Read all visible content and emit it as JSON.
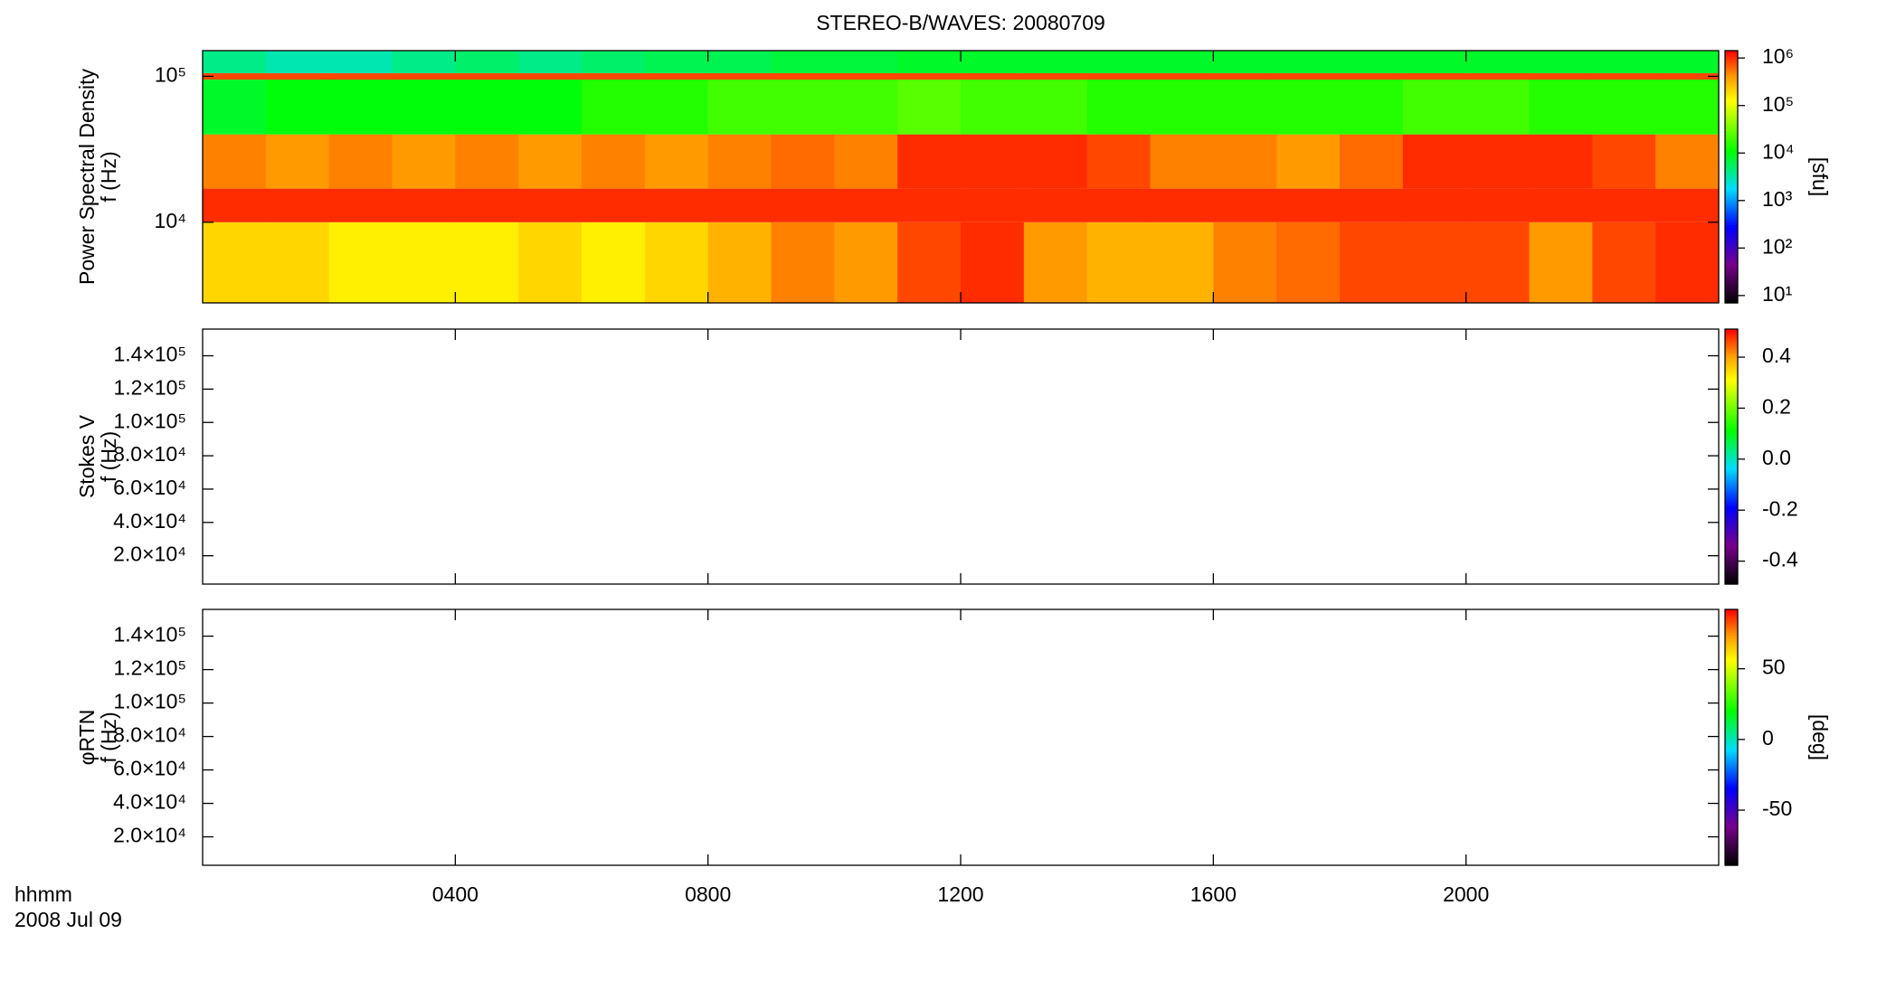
{
  "chart_data": [
    {
      "type": "heatmap",
      "title": "STEREO-B/WAVES: 20080709",
      "ylabel": [
        "Power Spectral Density",
        "f (Hz)"
      ],
      "xlim": [
        0,
        24
      ],
      "x_edges": [
        0,
        1,
        2,
        3,
        4,
        5,
        6,
        7,
        8,
        9,
        10,
        11,
        12,
        13,
        14,
        15,
        16,
        17,
        18,
        19,
        20,
        21,
        22,
        23,
        24
      ],
      "y_edges": [
        2800,
        10000,
        17000,
        40000,
        95000,
        105000,
        150000
      ],
      "z": [
        [
          200000,
          200000,
          150000,
          150000,
          150000,
          200000,
          150000,
          200000,
          300000,
          500000,
          400000,
          800000,
          1000000,
          400000,
          300000,
          300000,
          500000,
          600000,
          800000,
          800000,
          800000,
          400000,
          800000,
          1000000
        ],
        [
          1000000,
          1000000,
          1000000,
          1000000,
          1000000,
          1000000,
          1000000,
          1000000,
          1000000,
          1000000,
          1000000,
          1000000,
          1000000,
          1000000,
          1000000,
          1000000,
          1000000,
          1000000,
          1000000,
          1000000,
          1000000,
          1000000,
          1000000,
          1000000
        ],
        [
          500000,
          400000,
          500000,
          400000,
          500000,
          400000,
          500000,
          400000,
          500000,
          600000,
          500000,
          1000000,
          1000000,
          1000000,
          800000,
          500000,
          500000,
          400000,
          600000,
          1000000,
          1000000,
          1000000,
          800000,
          500000
        ],
        [
          8000,
          10000,
          10000,
          10000,
          10000,
          10000,
          15000,
          15000,
          20000,
          20000,
          20000,
          25000,
          20000,
          20000,
          15000,
          15000,
          15000,
          15000,
          15000,
          20000,
          20000,
          15000,
          15000,
          15000
        ],
        [
          800000,
          800000,
          800000,
          800000,
          800000,
          800000,
          800000,
          800000,
          800000,
          800000,
          800000,
          800000,
          800000,
          800000,
          800000,
          800000,
          800000,
          800000,
          800000,
          800000,
          800000,
          800000,
          800000,
          800000
        ],
        [
          4000,
          3000,
          3000,
          4000,
          5000,
          4000,
          5000,
          6000,
          6000,
          7000,
          7000,
          8000,
          8000,
          8000,
          8000,
          8000,
          8000,
          8000,
          8000,
          8000,
          8000,
          8000,
          8000,
          8000
        ]
      ],
      "ylim": [
        2800,
        150000
      ],
      "yscale": "log",
      "yticks": [
        {
          "value": 10000,
          "label": "10⁴"
        },
        {
          "value": 100000,
          "label": "10⁵"
        }
      ],
      "zlim": [
        7,
        1430000
      ],
      "zscale": "log",
      "zticks": [
        {
          "value": 10,
          "label": "10¹"
        },
        {
          "value": 100,
          "label": "10²"
        },
        {
          "value": 1000,
          "label": "10³"
        },
        {
          "value": 10000,
          "label": "10⁴"
        },
        {
          "value": 100000,
          "label": "10⁵"
        },
        {
          "value": 1000000,
          "label": "10⁶"
        }
      ],
      "zlabel": "[sfu]"
    },
    {
      "type": "heatmap",
      "ylabel": [
        "Stokes V",
        "f (Hz)"
      ],
      "xlim": [
        0,
        24
      ],
      "ylim": [
        3000,
        156000
      ],
      "yticks": [
        {
          "value": 20000,
          "label": "2.0×10⁴"
        },
        {
          "value": 40000,
          "label": "4.0×10⁴"
        },
        {
          "value": 60000,
          "label": "6.0×10⁴"
        },
        {
          "value": 80000,
          "label": "8.0×10⁴"
        },
        {
          "value": 100000,
          "label": "1.0×10⁵"
        },
        {
          "value": 120000,
          "label": "1.2×10⁵"
        },
        {
          "value": 140000,
          "label": "1.4×10⁵"
        }
      ],
      "zlim": [
        -0.49,
        0.51
      ],
      "zticks": [
        -0.4,
        -0.2,
        {
          "value": 0,
          "label": "0.0"
        },
        0.2,
        0.4
      ]
    },
    {
      "type": "heatmap",
      "ylabel": [
        "φRTN",
        "f (Hz)"
      ],
      "xlim": [
        0,
        24
      ],
      "ylim": [
        3000,
        156000
      ],
      "yticks": [
        {
          "value": 20000,
          "label": "2.0×10⁴"
        },
        {
          "value": 40000,
          "label": "4.0×10⁴"
        },
        {
          "value": 60000,
          "label": "6.0×10⁴"
        },
        {
          "value": 80000,
          "label": "8.0×10⁴"
        },
        {
          "value": 100000,
          "label": "1.0×10⁵"
        },
        {
          "value": 120000,
          "label": "1.2×10⁵"
        },
        {
          "value": 140000,
          "label": "1.4×10⁵"
        }
      ],
      "zlim": [
        -89,
        92
      ],
      "zticks": [
        -50,
        0,
        50
      ],
      "zlabel": "[deg]",
      "xticks": [
        {
          "value": 4,
          "label": "0400"
        },
        {
          "value": 8,
          "label": "0800"
        },
        {
          "value": 12,
          "label": "1200"
        },
        {
          "value": 16,
          "label": "1600"
        },
        {
          "value": 20,
          "label": "2000"
        }
      ],
      "xlabel": "hhmm",
      "date": "2008 Jul 09"
    }
  ]
}
